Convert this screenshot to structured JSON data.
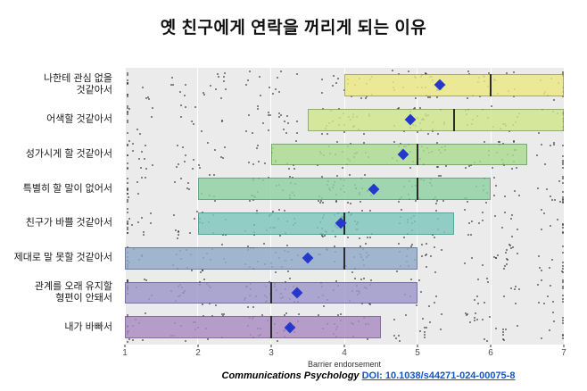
{
  "title": "옛 친구에게 연락을 꺼리게 되는 이유",
  "footer": {
    "journal": "Communications Psychology",
    "doi": "DOI: 10.1038/s44271-024-00075-8"
  },
  "chart_data": {
    "type": "box-strip",
    "title": "옛 친구에게 연락을 꺼리게 되는 이유",
    "xlabel": "Barrier endorsement",
    "xlim": [
      1,
      7
    ],
    "x_ticks": [
      1,
      2,
      3,
      4,
      5,
      6,
      7
    ],
    "grid": true,
    "panel_bg": "#ebebeb",
    "gridline_color": "#ffffff",
    "point_color": "#2b2b2b",
    "mean_marker_color": "#2438cc",
    "median_line_color": "#2b2b2b",
    "rows": [
      {
        "label": "나한테 관심 없을 것같아서",
        "label_lines": [
          "나한테 관심 없을",
          "것같아서"
        ],
        "q1": 4.0,
        "median": 6.0,
        "q3": 7.0,
        "mean": 5.3,
        "fill": "#ebe884",
        "stroke": "#9a9a4e",
        "n_points": 125
      },
      {
        "label": "어색할 것같아서",
        "label_lines": [
          "어색할 것같아서"
        ],
        "q1": 3.5,
        "median": 5.5,
        "q3": 7.0,
        "mean": 4.9,
        "fill": "#cfe789",
        "stroke": "#81a04b",
        "n_points": 130
      },
      {
        "label": "성가시게 할 것같아서",
        "label_lines": [
          "성가시게 할 것같아서"
        ],
        "q1": 3.0,
        "median": 5.0,
        "q3": 6.5,
        "mean": 4.8,
        "fill": "#abdc92",
        "stroke": "#5f9c55",
        "n_points": 135
      },
      {
        "label": "특별히 할 말이 없어서",
        "label_lines": [
          "특별히 할 말이 없어서"
        ],
        "q1": 2.0,
        "median": 5.0,
        "q3": 6.0,
        "mean": 4.4,
        "fill": "#8fd2a4",
        "stroke": "#459d70",
        "n_points": 140
      },
      {
        "label": "친구가 바쁠 것같아서",
        "label_lines": [
          "친구가 바쁠 것같아서"
        ],
        "q1": 2.0,
        "median": 4.0,
        "q3": 5.5,
        "mean": 3.95,
        "fill": "#7fc7bd",
        "stroke": "#3d948c",
        "n_points": 140
      },
      {
        "label": "제대로 말 못할 것같아서",
        "label_lines": [
          "제대로 말 못할 것같아서"
        ],
        "q1": 1.0,
        "median": 4.0,
        "q3": 5.0,
        "mean": 3.5,
        "fill": "#93aac9",
        "stroke": "#51678f",
        "n_points": 130
      },
      {
        "label": "관계를 오래 유지할 형편이 안돼서",
        "label_lines": [
          "관계를 오래 유지할",
          "형편이 안돼서"
        ],
        "q1": 1.0,
        "median": 3.0,
        "q3": 5.0,
        "mean": 3.35,
        "fill": "#9e98ca",
        "stroke": "#5d5694",
        "n_points": 130
      },
      {
        "label": "내가 바빠서",
        "label_lines": [
          "내가 바빠서"
        ],
        "q1": 1.0,
        "median": 3.0,
        "q3": 4.5,
        "mean": 3.25,
        "fill": "#ab8cc2",
        "stroke": "#6f5590",
        "n_points": 125
      }
    ]
  }
}
